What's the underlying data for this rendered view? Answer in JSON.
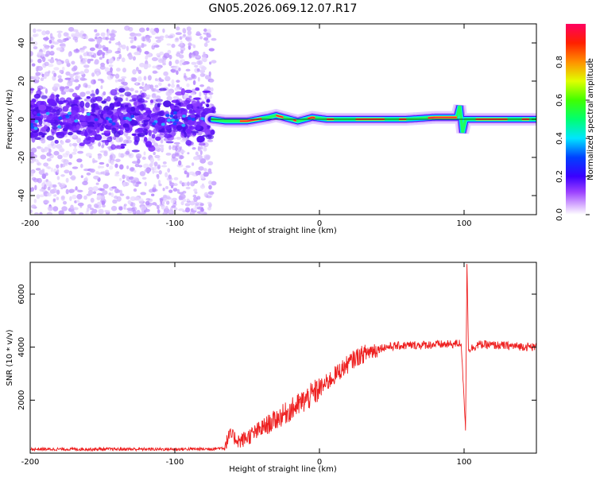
{
  "title": "GN05.2026.069.12.07.R17",
  "chart_data": [
    {
      "type": "heatmap",
      "title": "",
      "xlabel": "Height of straight line (km)",
      "ylabel": "Frequency (Hz)",
      "xlim": [
        -200,
        150
      ],
      "ylim": [
        -50,
        50
      ],
      "xticks": [
        -200,
        -100,
        0,
        100
      ],
      "yticks": [
        -40,
        -20,
        0,
        20,
        40
      ],
      "colorbar": {
        "label": "Normalized spectral amplitude",
        "range": [
          0,
          1
        ],
        "ticks": [
          0.0,
          0.2,
          0.4,
          0.6,
          0.8
        ],
        "colors": [
          "#ffffff",
          "#cc88ff",
          "#5500ff",
          "#0000ff",
          "#00ffff",
          "#00ff00",
          "#ffff00",
          "#ff8800",
          "#ff0000",
          "#ff0055"
        ]
      },
      "band": {
        "x": [
          -75,
          -65,
          -50,
          -35,
          -30,
          -20,
          -15,
          -5,
          5,
          20,
          40,
          60,
          80,
          95,
          97,
          99,
          101,
          120,
          150
        ],
        "freq": [
          0,
          -1,
          -1,
          1,
          2,
          0,
          -1,
          1,
          0,
          0,
          0,
          0,
          1,
          1,
          7,
          -7,
          0,
          0,
          0
        ]
      },
      "scatter_region": {
        "x": [
          -200,
          -73
        ],
        "freq": [
          -50,
          48
        ]
      }
    },
    {
      "type": "line",
      "title": "",
      "xlabel": "Height of straight line (km)",
      "ylabel": "SNR (10 * v/v)",
      "xlim": [
        -200,
        150
      ],
      "ylim": [
        0,
        7200
      ],
      "xticks": [
        -200,
        -100,
        0,
        100
      ],
      "yticks": [
        2000,
        4000,
        6000
      ],
      "series": [
        {
          "name": "SNR",
          "color": "#ee2020",
          "x": [
            -200,
            -150,
            -100,
            -75,
            -66,
            -62,
            -55,
            -45,
            -35,
            -25,
            -15,
            -5,
            5,
            15,
            25,
            35,
            45,
            55,
            70,
            80,
            90,
            98,
            100,
            101,
            102,
            103,
            110,
            130,
            150
          ],
          "y": [
            150,
            150,
            150,
            160,
            200,
            700,
            450,
            750,
            1100,
            1450,
            1800,
            2200,
            2650,
            3150,
            3600,
            3850,
            4000,
            4050,
            4080,
            4100,
            4100,
            4150,
            2000,
            900,
            7200,
            3900,
            4100,
            4050,
            4000
          ]
        }
      ]
    }
  ]
}
